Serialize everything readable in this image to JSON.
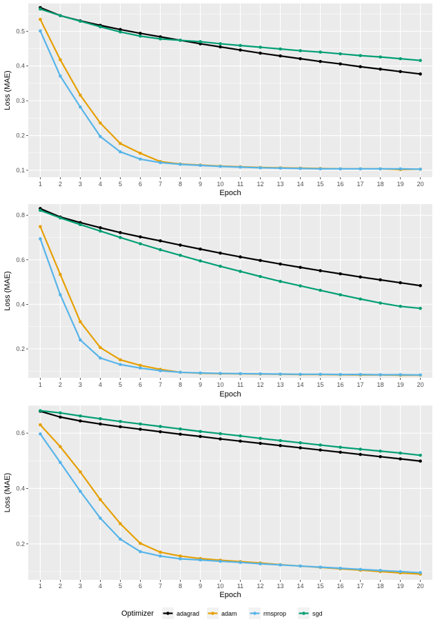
{
  "legend": {
    "title": "Optimizer",
    "entries": [
      {
        "name": "adagrad",
        "color": "#000000"
      },
      {
        "name": "adam",
        "color": "#E69F00"
      },
      {
        "name": "rmsprop",
        "color": "#56B4E9"
      },
      {
        "name": "sgd",
        "color": "#009E73"
      }
    ]
  },
  "chart_data": [
    {
      "type": "line",
      "xlabel": "Epoch",
      "ylabel": "Loss (MAE)",
      "x": [
        1,
        2,
        3,
        4,
        5,
        6,
        7,
        8,
        9,
        10,
        11,
        12,
        13,
        14,
        15,
        16,
        17,
        18,
        19,
        20
      ],
      "ylim": [
        0.08,
        0.58
      ],
      "yticks": [
        0.1,
        0.2,
        0.3,
        0.4,
        0.5
      ],
      "ytick_labels": [
        "0.1",
        "0.2",
        "0.3",
        "0.4",
        "0.5"
      ],
      "grid": true,
      "series": [
        {
          "name": "adagrad",
          "color": "#000000",
          "values": [
            0.568,
            0.545,
            0.53,
            0.517,
            0.505,
            0.494,
            0.484,
            0.474,
            0.464,
            0.455,
            0.446,
            0.437,
            0.429,
            0.421,
            0.413,
            0.406,
            0.398,
            0.391,
            0.384,
            0.377
          ]
        },
        {
          "name": "adam",
          "color": "#E69F00",
          "values": [
            0.534,
            0.418,
            0.316,
            0.236,
            0.177,
            0.149,
            0.125,
            0.118,
            0.115,
            0.112,
            0.11,
            0.108,
            0.107,
            0.106,
            0.105,
            0.104,
            0.104,
            0.104,
            0.102,
            0.103
          ]
        },
        {
          "name": "rmsprop",
          "color": "#56B4E9",
          "values": [
            0.501,
            0.371,
            0.282,
            0.197,
            0.153,
            0.132,
            0.122,
            0.117,
            0.114,
            0.111,
            0.109,
            0.107,
            0.106,
            0.105,
            0.104,
            0.104,
            0.104,
            0.104,
            0.104,
            0.103
          ]
        },
        {
          "name": "sgd",
          "color": "#009E73",
          "values": [
            0.564,
            0.545,
            0.529,
            0.513,
            0.498,
            0.486,
            0.478,
            0.474,
            0.47,
            0.464,
            0.459,
            0.454,
            0.449,
            0.444,
            0.44,
            0.435,
            0.43,
            0.426,
            0.421,
            0.416
          ]
        }
      ]
    },
    {
      "type": "line",
      "xlabel": "Epoch",
      "ylabel": "Loss (MAE)",
      "x": [
        1,
        2,
        3,
        4,
        5,
        6,
        7,
        8,
        9,
        10,
        11,
        12,
        13,
        14,
        15,
        16,
        17,
        18,
        19,
        20
      ],
      "ylim": [
        0.07,
        0.85
      ],
      "yticks": [
        0.2,
        0.4,
        0.6,
        0.8
      ],
      "ytick_labels": [
        "0.2",
        "0.4",
        "0.6",
        "0.8"
      ],
      "grid": true,
      "series": [
        {
          "name": "adagrad",
          "color": "#000000",
          "values": [
            0.83,
            0.792,
            0.767,
            0.744,
            0.722,
            0.703,
            0.685,
            0.666,
            0.648,
            0.63,
            0.613,
            0.597,
            0.581,
            0.566,
            0.551,
            0.537,
            0.523,
            0.51,
            0.497,
            0.484
          ]
        },
        {
          "name": "adam",
          "color": "#E69F00",
          "values": [
            0.749,
            0.534,
            0.322,
            0.206,
            0.151,
            0.126,
            0.108,
            0.095,
            0.091,
            0.089,
            0.088,
            0.087,
            0.086,
            0.085,
            0.085,
            0.084,
            0.083,
            0.083,
            0.082,
            0.082
          ]
        },
        {
          "name": "rmsprop",
          "color": "#56B4E9",
          "values": [
            0.694,
            0.443,
            0.24,
            0.159,
            0.13,
            0.114,
            0.102,
            0.095,
            0.092,
            0.09,
            0.089,
            0.088,
            0.087,
            0.086,
            0.086,
            0.085,
            0.085,
            0.084,
            0.084,
            0.083
          ]
        },
        {
          "name": "sgd",
          "color": "#009E73",
          "values": [
            0.822,
            0.788,
            0.758,
            0.729,
            0.7,
            0.672,
            0.645,
            0.62,
            0.595,
            0.571,
            0.548,
            0.525,
            0.503,
            0.483,
            0.463,
            0.443,
            0.424,
            0.406,
            0.391,
            0.382
          ]
        }
      ]
    },
    {
      "type": "line",
      "xlabel": "Epoch",
      "ylabel": "Loss (MAE)",
      "x": [
        1,
        2,
        3,
        4,
        5,
        6,
        7,
        8,
        9,
        10,
        11,
        12,
        13,
        14,
        15,
        16,
        17,
        18,
        19,
        20
      ],
      "ylim": [
        0.07,
        0.7
      ],
      "yticks": [
        0.2,
        0.4,
        0.6
      ],
      "ytick_labels": [
        "0.2",
        "0.4",
        "0.6"
      ],
      "grid": true,
      "series": [
        {
          "name": "adagrad",
          "color": "#000000",
          "values": [
            0.679,
            0.658,
            0.644,
            0.633,
            0.623,
            0.614,
            0.605,
            0.596,
            0.588,
            0.579,
            0.571,
            0.563,
            0.555,
            0.547,
            0.539,
            0.531,
            0.523,
            0.515,
            0.507,
            0.499
          ]
        },
        {
          "name": "adam",
          "color": "#E69F00",
          "values": [
            0.63,
            0.551,
            0.46,
            0.36,
            0.273,
            0.202,
            0.17,
            0.156,
            0.147,
            0.141,
            0.136,
            0.131,
            0.125,
            0.12,
            0.115,
            0.11,
            0.105,
            0.1,
            0.095,
            0.091
          ]
        },
        {
          "name": "rmsprop",
          "color": "#56B4E9",
          "values": [
            0.597,
            0.494,
            0.39,
            0.293,
            0.217,
            0.172,
            0.156,
            0.146,
            0.142,
            0.137,
            0.133,
            0.128,
            0.124,
            0.12,
            0.116,
            0.112,
            0.108,
            0.104,
            0.1,
            0.096
          ]
        },
        {
          "name": "sgd",
          "color": "#009E73",
          "values": [
            0.681,
            0.673,
            0.662,
            0.652,
            0.642,
            0.633,
            0.624,
            0.615,
            0.606,
            0.598,
            0.59,
            0.581,
            0.573,
            0.565,
            0.557,
            0.549,
            0.542,
            0.535,
            0.528,
            0.52
          ]
        }
      ]
    }
  ]
}
